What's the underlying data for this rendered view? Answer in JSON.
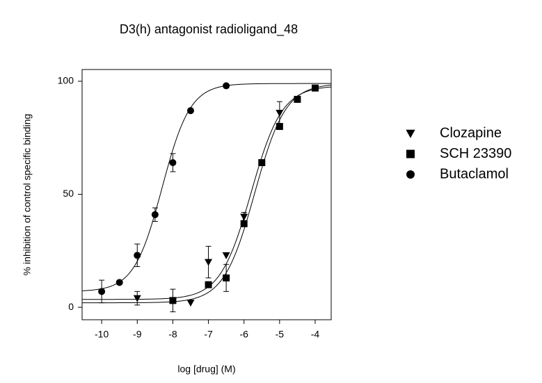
{
  "chart_data": {
    "type": "dose-response",
    "title": "D3(h) antagonist radioligand_48",
    "x_label": "log [drug]  (M)",
    "y_label": "% inhibition of control specific binding",
    "xlim": [
      -10.55,
      -3.55
    ],
    "ylim": [
      -5.5,
      105.2
    ],
    "xticks": [
      -10,
      -9,
      -8,
      -7,
      -6,
      -5,
      -4
    ],
    "yticks": [
      0,
      50,
      100
    ],
    "series": [
      {
        "name": "Clozapine",
        "color": "#000000",
        "marker": "triangle-down",
        "x": [
          -9,
          -7.5,
          -7,
          -6.5,
          -6,
          -5
        ],
        "values": [
          4,
          2,
          20,
          23,
          40,
          86
        ],
        "errors": [
          3,
          null,
          7,
          null,
          2,
          5
        ],
        "fit": {
          "bottom": 3.5,
          "top": 98,
          "log_ec50": -5.8,
          "hill": 1
        }
      },
      {
        "name": "SCH 23390",
        "color": "#000000",
        "marker": "square",
        "x": [
          -8,
          -7,
          -6.5,
          -6,
          -5.5,
          -5,
          -4.5,
          -4
        ],
        "values": [
          3,
          10,
          13,
          37,
          64,
          80,
          92,
          97
        ],
        "errors": [
          5,
          null,
          6,
          null,
          null,
          null,
          null,
          null
        ],
        "fit": {
          "bottom": 2,
          "top": 99,
          "log_ec50": -5.7,
          "hill": 1
        }
      },
      {
        "name": "Butaclamol",
        "color": "#000000",
        "marker": "circle",
        "x": [
          -10,
          -9.5,
          -9,
          -8.5,
          -8,
          -7.5,
          -6.5
        ],
        "values": [
          7,
          11,
          23,
          41,
          64,
          87,
          98
        ],
        "errors": [
          5,
          null,
          5,
          3,
          4,
          null,
          null
        ],
        "fit": {
          "bottom": 7,
          "top": 99,
          "log_ec50": -8.3,
          "hill": 1.1
        }
      }
    ]
  }
}
